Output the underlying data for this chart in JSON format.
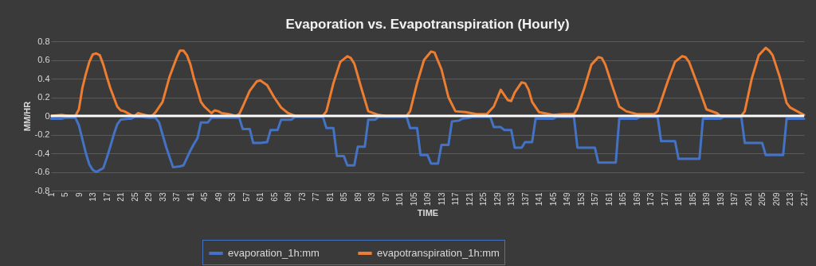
{
  "chart_data": {
    "type": "line",
    "title": "Evaporation vs. Evapotranspiration (Hourly)",
    "xlabel": "TIME",
    "ylabel": "MM/HR",
    "xlim": [
      1,
      217
    ],
    "xticks": [
      1,
      5,
      9,
      13,
      17,
      21,
      25,
      29,
      33,
      37,
      41,
      45,
      49,
      53,
      57,
      61,
      65,
      69,
      73,
      77,
      81,
      85,
      89,
      93,
      97,
      101,
      105,
      109,
      113,
      117,
      121,
      125,
      129,
      133,
      137,
      141,
      145,
      149,
      153,
      157,
      161,
      165,
      169,
      173,
      177,
      181,
      185,
      189,
      193,
      197,
      201,
      205,
      209,
      213,
      217
    ],
    "ylim": [
      -0.8,
      0.8
    ],
    "yticks": [
      -0.8,
      -0.6,
      -0.4,
      -0.2,
      0,
      0.2,
      0.4,
      0.6,
      0.8
    ],
    "grid": "y",
    "legend": "bottom",
    "ref_lines": [
      {
        "axis": "y",
        "value": 0,
        "color": "#ffffff"
      }
    ],
    "series": [
      {
        "name": "evaporation_1h:mm",
        "color": "#4472c4",
        "x": [
          1,
          4,
          5,
          8,
          9,
          10,
          11,
          12,
          13,
          14,
          15,
          16,
          17,
          18,
          19,
          20,
          21,
          23,
          24,
          25,
          27,
          29,
          31,
          32,
          33,
          34,
          36,
          38,
          39,
          40,
          41,
          42,
          43,
          44,
          46,
          47,
          55,
          56,
          58,
          59,
          61,
          63,
          64,
          66,
          67,
          70,
          71,
          79,
          80,
          82,
          83,
          85,
          86,
          88,
          89,
          91,
          92,
          94,
          95,
          103,
          104,
          106,
          107,
          109,
          110,
          112,
          113,
          115,
          116,
          118,
          119,
          121,
          122,
          127,
          128,
          130,
          131,
          133,
          134,
          136,
          137,
          139,
          140,
          145,
          146,
          151,
          152,
          157,
          158,
          163,
          164,
          169,
          170,
          175,
          176,
          180,
          181,
          187,
          188,
          193,
          194,
          199,
          200,
          205,
          206,
          211,
          212,
          217
        ],
        "values": [
          -0.03,
          -0.03,
          -0.02,
          -0.02,
          -0.1,
          -0.25,
          -0.4,
          -0.52,
          -0.58,
          -0.6,
          -0.58,
          -0.56,
          -0.45,
          -0.33,
          -0.2,
          -0.09,
          -0.04,
          -0.03,
          -0.03,
          -0.01,
          -0.01,
          -0.02,
          -0.02,
          -0.07,
          -0.2,
          -0.33,
          -0.55,
          -0.54,
          -0.53,
          -0.45,
          -0.37,
          -0.3,
          -0.24,
          -0.07,
          -0.07,
          -0.02,
          -0.02,
          -0.14,
          -0.14,
          -0.29,
          -0.29,
          -0.28,
          -0.15,
          -0.15,
          -0.04,
          -0.04,
          -0.01,
          -0.01,
          -0.13,
          -0.13,
          -0.43,
          -0.43,
          -0.53,
          -0.53,
          -0.33,
          -0.33,
          -0.04,
          -0.04,
          -0.01,
          -0.01,
          -0.13,
          -0.13,
          -0.42,
          -0.42,
          -0.51,
          -0.51,
          -0.31,
          -0.31,
          -0.06,
          -0.05,
          -0.03,
          -0.02,
          -0.01,
          -0.01,
          -0.12,
          -0.12,
          -0.15,
          -0.15,
          -0.34,
          -0.34,
          -0.28,
          -0.28,
          -0.03,
          -0.03,
          -0.01,
          -0.01,
          -0.34,
          -0.34,
          -0.5,
          -0.5,
          -0.03,
          -0.03,
          -0.01,
          -0.01,
          -0.27,
          -0.27,
          -0.46,
          -0.46,
          -0.03,
          -0.03,
          -0.01,
          -0.01,
          -0.29,
          -0.29,
          -0.42,
          -0.42,
          -0.03,
          -0.03
        ]
      },
      {
        "name": "evapotranspiration_1h:mm",
        "color": "#ed7d31",
        "x": [
          1,
          4,
          6,
          8,
          9,
          10,
          11,
          12,
          13,
          14,
          15,
          16,
          17,
          18,
          19,
          20,
          21,
          22,
          24,
          25,
          26,
          27,
          29,
          30,
          31,
          33,
          35,
          37,
          38,
          39,
          40,
          41,
          42,
          43,
          44,
          45,
          47,
          48,
          49,
          50,
          52,
          54,
          55,
          56,
          58,
          60,
          61,
          63,
          65,
          67,
          69,
          71,
          79,
          80,
          82,
          84,
          86,
          87,
          88,
          90,
          92,
          95,
          97,
          103,
          104,
          106,
          108,
          110,
          111,
          113,
          115,
          117,
          120,
          123,
          126,
          128,
          130,
          132,
          133,
          134,
          136,
          137,
          138,
          139,
          141,
          145,
          148,
          151,
          152,
          154,
          156,
          158,
          159,
          160,
          162,
          164,
          166,
          169,
          174,
          175,
          178,
          180,
          182,
          183,
          184,
          187,
          189,
          192,
          193,
          199,
          200,
          202,
          204,
          206,
          207,
          208,
          210,
          212,
          213,
          215,
          217
        ],
        "values": [
          0,
          0.01,
          0,
          0,
          0.07,
          0.3,
          0.45,
          0.58,
          0.66,
          0.67,
          0.65,
          0.55,
          0.42,
          0.3,
          0.2,
          0.1,
          0.06,
          0.05,
          0.01,
          0,
          0.03,
          0.02,
          0,
          0,
          0.04,
          0.15,
          0.42,
          0.62,
          0.7,
          0.7,
          0.65,
          0.55,
          0.4,
          0.28,
          0.15,
          0.1,
          0.03,
          0.06,
          0.05,
          0.03,
          0.02,
          0,
          0.02,
          0.1,
          0.27,
          0.37,
          0.38,
          0.33,
          0.2,
          0.09,
          0.03,
          0,
          0,
          0.05,
          0.35,
          0.58,
          0.64,
          0.62,
          0.56,
          0.3,
          0.05,
          0.01,
          0,
          0,
          0.05,
          0.35,
          0.6,
          0.69,
          0.68,
          0.5,
          0.2,
          0.05,
          0.04,
          0.02,
          0.02,
          0.1,
          0.28,
          0.17,
          0.16,
          0.25,
          0.36,
          0.35,
          0.28,
          0.15,
          0.04,
          0.01,
          0.02,
          0.02,
          0.08,
          0.3,
          0.55,
          0.63,
          0.62,
          0.55,
          0.32,
          0.1,
          0.05,
          0.02,
          0.02,
          0.05,
          0.38,
          0.58,
          0.64,
          0.63,
          0.58,
          0.28,
          0.07,
          0.03,
          0,
          0,
          0.05,
          0.4,
          0.65,
          0.73,
          0.7,
          0.65,
          0.42,
          0.14,
          0.09,
          0.05,
          0.01
        ]
      }
    ]
  }
}
